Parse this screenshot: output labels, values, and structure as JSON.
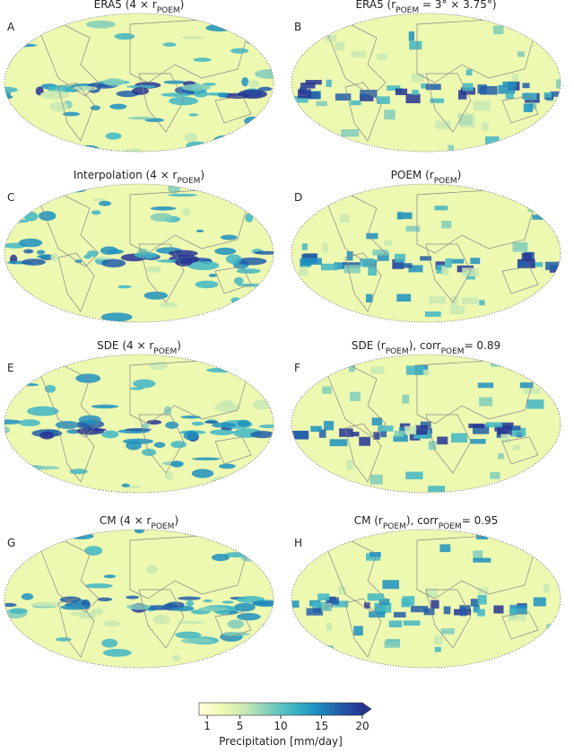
{
  "panels": [
    {
      "letter": "A",
      "title": [
        {
          "text": "ERA5 (4 × r"
        },
        {
          "text": "POEM",
          "sub": true
        },
        {
          "text": ")"
        }
      ]
    },
    {
      "letter": "B",
      "title": [
        {
          "text": "ERA5 (r"
        },
        {
          "text": "POEM",
          "sub": true
        },
        {
          "text": " = 3° × 3.75°)"
        }
      ]
    },
    {
      "letter": "C",
      "title": [
        {
          "text": "Interpolation (4 × r"
        },
        {
          "text": "POEM",
          "sub": true
        },
        {
          "text": ")"
        }
      ]
    },
    {
      "letter": "D",
      "title": [
        {
          "text": "POEM (r"
        },
        {
          "text": "POEM",
          "sub": true
        },
        {
          "text": ")"
        }
      ]
    },
    {
      "letter": "E",
      "title": [
        {
          "text": "SDE (4 × r"
        },
        {
          "text": "POEM",
          "sub": true
        },
        {
          "text": ")"
        }
      ]
    },
    {
      "letter": "F",
      "title": [
        {
          "text": "SDE (r"
        },
        {
          "text": "POEM",
          "sub": true
        },
        {
          "text": "), corr"
        },
        {
          "text": "POEM",
          "sub": true
        },
        {
          "text": "= 0.89"
        }
      ]
    },
    {
      "letter": "G",
      "title": [
        {
          "text": "CM (4 × r"
        },
        {
          "text": "POEM",
          "sub": true
        },
        {
          "text": ")"
        }
      ]
    },
    {
      "letter": "H",
      "title": [
        {
          "text": "CM (r"
        },
        {
          "text": "POEM",
          "sub": true
        },
        {
          "text": "), corr"
        },
        {
          "text": "POEM",
          "sub": true
        },
        {
          "text": "= 0.95"
        }
      ]
    }
  ],
  "colorbar": {
    "label": "Precipitation [mm/day]",
    "lim": [
      0,
      20
    ],
    "ticks": [
      1,
      5,
      10,
      15,
      20
    ],
    "colormap": [
      "#ffffd9",
      "#edf8b1",
      "#c7e9b4",
      "#7fcdbb",
      "#41b6c4",
      "#1d91c0",
      "#225ea8",
      "#253494"
    ]
  }
}
